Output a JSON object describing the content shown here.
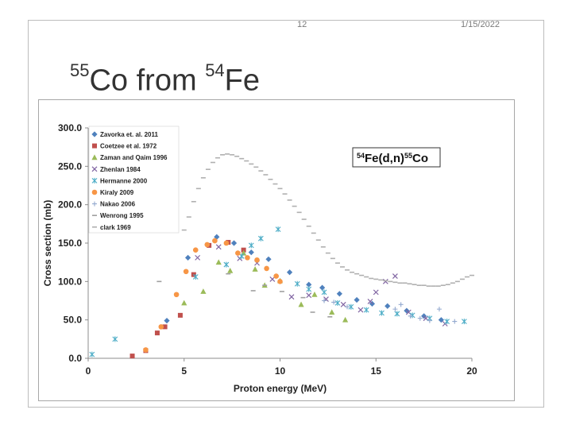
{
  "header": {
    "page_number": "12",
    "date": "1/15/2022"
  },
  "slide": {
    "title_sup1": "55",
    "title_main1": "Co from ",
    "title_sup2": "54",
    "title_main2": "Fe"
  },
  "chart_data": {
    "type": "scatter",
    "xlabel": "Proton energy (MeV)",
    "ylabel": "Cross section (mb)",
    "xlim": [
      0,
      20
    ],
    "ylim": [
      0,
      300
    ],
    "x_ticks": [
      "0",
      "5",
      "10",
      "15",
      "20"
    ],
    "y_ticks": [
      "0.0",
      "50.0",
      "100.0",
      "150.0",
      "200.0",
      "250.0",
      "300.0"
    ],
    "grid": false,
    "legend_position": "top-left",
    "annotation": {
      "sup1": "54",
      "base1": "Fe(d,n)",
      "sup2": "55",
      "base2": "Co"
    },
    "series": [
      {
        "name": "Zavorka et. al. 2011",
        "marker": "diamond",
        "color": "#4f81bd",
        "points": [
          [
            4.1,
            49
          ],
          [
            5.2,
            131
          ],
          [
            6.7,
            158
          ],
          [
            7.6,
            150
          ],
          [
            8.5,
            138
          ],
          [
            9.4,
            129
          ],
          [
            10.5,
            112
          ],
          [
            11.5,
            96
          ],
          [
            12.2,
            92
          ],
          [
            13.1,
            84
          ],
          [
            14.0,
            76
          ],
          [
            14.8,
            71
          ],
          [
            15.6,
            68
          ],
          [
            16.6,
            62
          ],
          [
            17.5,
            55
          ],
          [
            18.4,
            50
          ]
        ]
      },
      {
        "name": "Coetzee et al. 1972",
        "marker": "square",
        "color": "#c0504d",
        "points": [
          [
            2.3,
            3
          ],
          [
            3.0,
            10
          ],
          [
            3.6,
            33
          ],
          [
            4.0,
            41
          ],
          [
            4.8,
            56
          ],
          [
            5.5,
            109
          ],
          [
            6.3,
            147
          ],
          [
            7.3,
            151
          ],
          [
            8.1,
            141
          ]
        ]
      },
      {
        "name": "Zaman and Qaim 1996",
        "marker": "triangle",
        "color": "#9bbb59",
        "points": [
          [
            5.0,
            72
          ],
          [
            6.0,
            87
          ],
          [
            6.8,
            125
          ],
          [
            7.4,
            114
          ],
          [
            8.1,
            137
          ],
          [
            8.7,
            116
          ],
          [
            9.2,
            95
          ],
          [
            10.0,
            101
          ],
          [
            11.1,
            70
          ],
          [
            11.8,
            83
          ],
          [
            12.7,
            60
          ],
          [
            13.4,
            50
          ]
        ]
      },
      {
        "name": "Zhenlan 1984",
        "marker": "x",
        "color": "#8064a2",
        "points": [
          [
            5.7,
            131
          ],
          [
            6.8,
            145
          ],
          [
            7.9,
            130
          ],
          [
            8.8,
            124
          ],
          [
            9.6,
            103
          ],
          [
            10.6,
            80
          ],
          [
            11.5,
            82
          ],
          [
            12.4,
            77
          ],
          [
            13.3,
            70
          ],
          [
            14.2,
            63
          ],
          [
            14.7,
            74
          ],
          [
            15.0,
            86
          ],
          [
            15.5,
            100
          ],
          [
            16.0,
            107
          ],
          [
            16.7,
            60
          ],
          [
            17.6,
            52
          ],
          [
            18.6,
            45
          ]
        ]
      },
      {
        "name": "Hermanne 2000",
        "marker": "star",
        "color": "#4bacc6",
        "points": [
          [
            0.2,
            5
          ],
          [
            1.4,
            25
          ],
          [
            5.6,
            106
          ],
          [
            7.2,
            122
          ],
          [
            8.0,
            133
          ],
          [
            8.5,
            147
          ],
          [
            9.0,
            156
          ],
          [
            9.9,
            168
          ],
          [
            10.9,
            97
          ],
          [
            11.5,
            90
          ],
          [
            12.3,
            86
          ],
          [
            13.0,
            72
          ],
          [
            13.7,
            67
          ],
          [
            14.5,
            63
          ],
          [
            15.3,
            59
          ],
          [
            16.1,
            58
          ],
          [
            16.9,
            56
          ],
          [
            17.8,
            52
          ],
          [
            18.7,
            48
          ],
          [
            19.6,
            48
          ]
        ]
      },
      {
        "name": "Kiraly 2009",
        "marker": "circle",
        "color": "#f79646",
        "points": [
          [
            3.0,
            11
          ],
          [
            3.8,
            41
          ],
          [
            4.6,
            83
          ],
          [
            5.1,
            113
          ],
          [
            5.6,
            141
          ],
          [
            6.2,
            148
          ],
          [
            6.6,
            153
          ],
          [
            7.2,
            150
          ],
          [
            7.8,
            137
          ],
          [
            8.3,
            131
          ],
          [
            8.8,
            128
          ],
          [
            9.3,
            117
          ],
          [
            9.8,
            107
          ],
          [
            10.0,
            100
          ]
        ]
      },
      {
        "name": "Nakao 2006",
        "marker": "plus",
        "color": "#93a9cf",
        "points": [
          [
            12.3,
            75
          ],
          [
            12.8,
            73
          ],
          [
            13.5,
            67
          ],
          [
            16.0,
            64
          ],
          [
            16.3,
            70
          ],
          [
            16.8,
            55
          ],
          [
            17.3,
            52
          ],
          [
            17.8,
            49
          ],
          [
            18.3,
            64
          ],
          [
            19.1,
            48
          ]
        ]
      },
      {
        "name": "Wenrong 1995",
        "marker": "dash",
        "color": "#a0a0a0",
        "points": [
          [
            3.7,
            100
          ],
          [
            7.3,
            110
          ],
          [
            8.6,
            88
          ],
          [
            9.2,
            95
          ],
          [
            10.1,
            87
          ],
          [
            11.2,
            79
          ],
          [
            11.7,
            60
          ],
          [
            12.6,
            54
          ]
        ]
      },
      {
        "name": "clark 1969",
        "marker": "dash",
        "color": "#b0b0b0",
        "points": [
          [
            5.0,
            167
          ],
          [
            5.25,
            184
          ],
          [
            5.5,
            204
          ],
          [
            5.75,
            221
          ],
          [
            6.0,
            235
          ],
          [
            6.25,
            246
          ],
          [
            6.5,
            255
          ],
          [
            6.75,
            261
          ],
          [
            7.0,
            265
          ],
          [
            7.25,
            266
          ],
          [
            7.5,
            265
          ],
          [
            7.75,
            263
          ],
          [
            8.0,
            260
          ],
          [
            8.25,
            257
          ],
          [
            8.5,
            253
          ],
          [
            8.75,
            249
          ],
          [
            9.0,
            244
          ],
          [
            9.25,
            239
          ],
          [
            9.5,
            233
          ],
          [
            9.75,
            227
          ],
          [
            10.0,
            221
          ],
          [
            10.25,
            214
          ],
          [
            10.5,
            206
          ],
          [
            10.75,
            198
          ],
          [
            11.0,
            190
          ],
          [
            11.25,
            181
          ],
          [
            11.5,
            172
          ],
          [
            11.75,
            163
          ],
          [
            12.0,
            154
          ],
          [
            12.25,
            145
          ],
          [
            12.5,
            137
          ],
          [
            12.75,
            130
          ],
          [
            13.0,
            124
          ],
          [
            13.25,
            119
          ],
          [
            13.5,
            115
          ],
          [
            13.75,
            112
          ],
          [
            14.0,
            110
          ],
          [
            14.25,
            108
          ],
          [
            14.5,
            106
          ],
          [
            14.75,
            104
          ],
          [
            15.0,
            103
          ],
          [
            15.25,
            102
          ],
          [
            15.5,
            101
          ],
          [
            15.75,
            100
          ],
          [
            16.0,
            99
          ],
          [
            16.25,
            98
          ],
          [
            16.5,
            98
          ],
          [
            16.75,
            97
          ],
          [
            17.0,
            96
          ],
          [
            17.25,
            95
          ],
          [
            17.5,
            95
          ],
          [
            17.75,
            94
          ],
          [
            18.0,
            94
          ],
          [
            18.25,
            94
          ],
          [
            18.5,
            95
          ],
          [
            18.75,
            96
          ],
          [
            19.0,
            98
          ],
          [
            19.25,
            100
          ],
          [
            19.5,
            103
          ],
          [
            19.75,
            106
          ],
          [
            20.0,
            108
          ]
        ]
      }
    ]
  }
}
